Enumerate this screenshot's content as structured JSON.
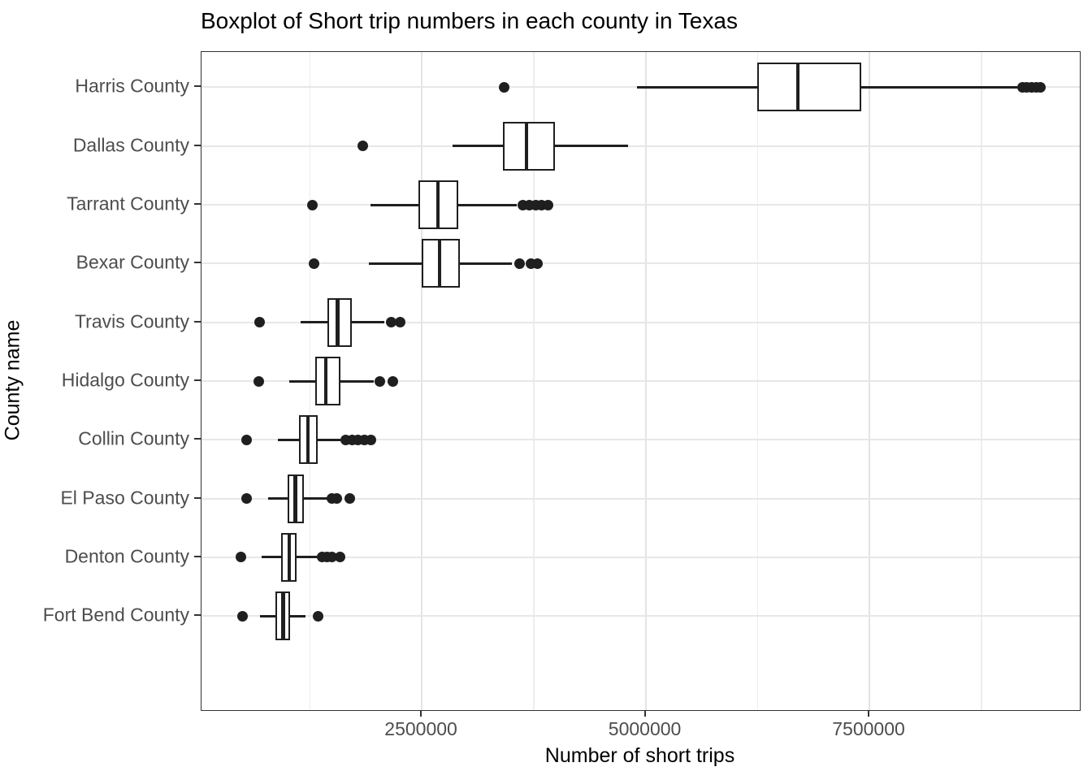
{
  "chart_data": {
    "type": "boxplot",
    "orientation": "horizontal",
    "title": "Boxplot of Short trip numbers in each county in Texas",
    "xlabel": "Number of short trips",
    "ylabel": "County name",
    "xlim": [
      40000,
      9850000
    ],
    "x_ticks": [
      2500000,
      5000000,
      7500000
    ],
    "x_tick_labels": [
      "2500000",
      "5000000",
      "7500000"
    ],
    "x_minor_ticks": [
      1250000,
      3750000,
      6250000,
      8750000
    ],
    "grid": true,
    "legend": false,
    "categories": [
      "Harris County",
      "Dallas County",
      "Tarrant County",
      "Bexar County",
      "Travis County",
      "Hidalgo County",
      "Collin County",
      "El Paso County",
      "Denton County",
      "Fort Bend County"
    ],
    "boxes": [
      {
        "county": "Harris County",
        "whisker_min": 4900000,
        "q1": 6250000,
        "median": 6700000,
        "q3": 7410000,
        "whisker_max": 9150000,
        "outliers_low": [
          3420000
        ],
        "outliers_high": [
          9210000,
          9260000,
          9310000,
          9360000,
          9410000
        ]
      },
      {
        "county": "Dallas County",
        "whisker_min": 2840000,
        "q1": 3410000,
        "median": 3670000,
        "q3": 3990000,
        "whisker_max": 4800000,
        "outliers_low": [
          1840000
        ],
        "outliers_high": []
      },
      {
        "county": "Tarrant County",
        "whisker_min": 1930000,
        "q1": 2460000,
        "median": 2680000,
        "q3": 2910000,
        "whisker_max": 3560000,
        "outliers_low": [
          1280000
        ],
        "outliers_high": [
          3630000,
          3700000,
          3770000,
          3840000,
          3910000
        ]
      },
      {
        "county": "Bexar County",
        "whisker_min": 1910000,
        "q1": 2500000,
        "median": 2700000,
        "q3": 2930000,
        "whisker_max": 3510000,
        "outliers_low": [
          1300000
        ],
        "outliers_high": [
          3590000,
          3720000,
          3790000
        ]
      },
      {
        "county": "Travis County",
        "whisker_min": 1150000,
        "q1": 1450000,
        "median": 1560000,
        "q3": 1720000,
        "whisker_max": 2080000,
        "outliers_low": [
          690000
        ],
        "outliers_high": [
          2160000,
          2260000
        ]
      },
      {
        "county": "Hidalgo County",
        "whisker_min": 1020000,
        "q1": 1310000,
        "median": 1430000,
        "q3": 1590000,
        "whisker_max": 1960000,
        "outliers_low": [
          680000
        ],
        "outliers_high": [
          2030000,
          2180000
        ]
      },
      {
        "county": "Collin County",
        "whisker_min": 890000,
        "q1": 1130000,
        "median": 1230000,
        "q3": 1340000,
        "whisker_max": 1590000,
        "outliers_low": [
          545000
        ],
        "outliers_high": [
          1650000,
          1720000,
          1790000,
          1860000,
          1930000
        ]
      },
      {
        "county": "El Paso County",
        "whisker_min": 780000,
        "q1": 1000000,
        "median": 1090000,
        "q3": 1180000,
        "whisker_max": 1460000,
        "outliers_low": [
          540000
        ],
        "outliers_high": [
          1500000,
          1550000,
          1700000
        ]
      },
      {
        "county": "Denton County",
        "whisker_min": 710000,
        "q1": 930000,
        "median": 1020000,
        "q3": 1100000,
        "whisker_max": 1340000,
        "outliers_low": [
          480000
        ],
        "outliers_high": [
          1390000,
          1440000,
          1500000,
          1590000
        ]
      },
      {
        "county": "Fort Bend County",
        "whisker_min": 690000,
        "q1": 870000,
        "median": 950000,
        "q3": 1030000,
        "whisker_max": 1200000,
        "outliers_low": [
          500000
        ],
        "outliers_high": [
          1340000
        ]
      }
    ]
  },
  "colors": {
    "stroke": "#1f1f1f",
    "panel_border": "#333333",
    "grid_major": "#e4e4e4",
    "grid_minor": "#ededed",
    "tick_label": "#4d4d4d",
    "background": "#ffffff"
  }
}
